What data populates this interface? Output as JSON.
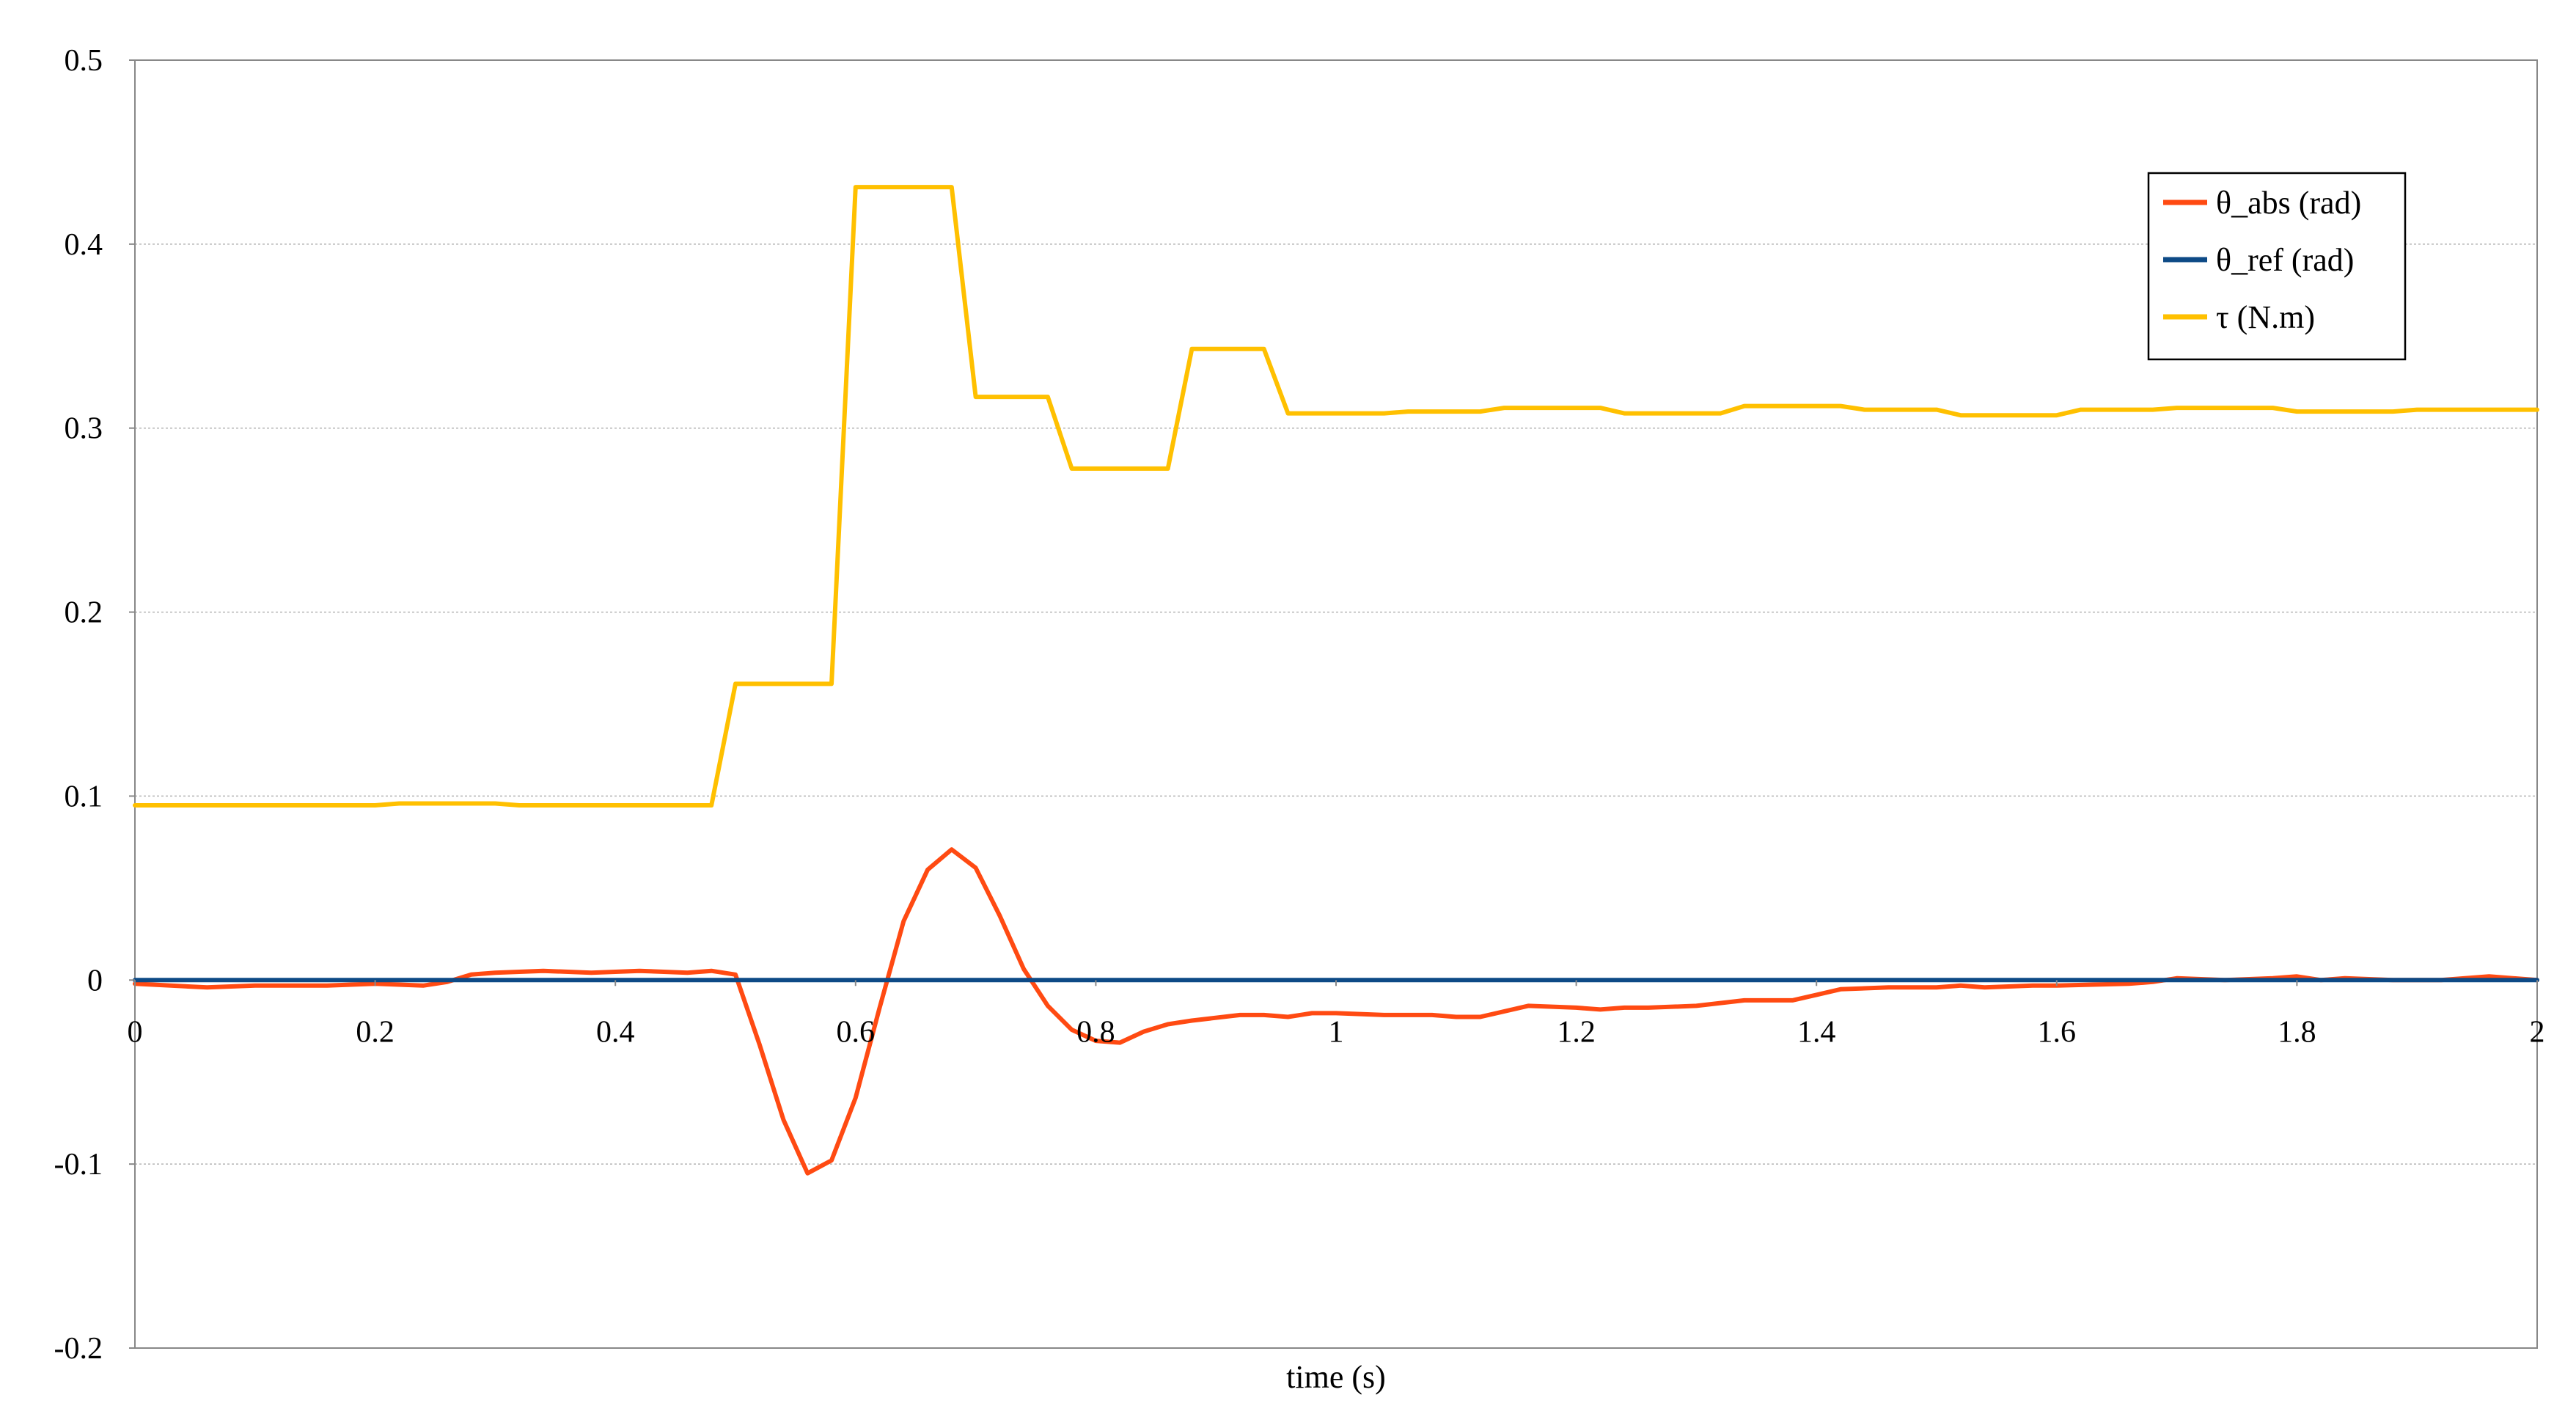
{
  "chart_data": {
    "type": "line",
    "title": "",
    "xlabel": "time (s)",
    "ylabel": "",
    "xlim": [
      0,
      2
    ],
    "ylim": [
      -0.2,
      0.5
    ],
    "xticks": [
      0,
      0.2,
      0.4,
      0.6,
      0.8,
      1,
      1.2,
      1.4,
      1.6,
      1.8,
      2
    ],
    "yticks": [
      -0.2,
      -0.1,
      0,
      0.1,
      0.2,
      0.3,
      0.4,
      0.5
    ],
    "xtick_labels": [
      "0",
      "0.2",
      "0.4",
      "0.6",
      "0.8",
      "1",
      "1.2",
      "1.4",
      "1.6",
      "1.8",
      "2"
    ],
    "ytick_labels": [
      "-0.2",
      "-0.1",
      "0",
      "0.1",
      "0.2",
      "0.3",
      "0.4",
      "0.5"
    ],
    "grid": "horizontal",
    "legend_position": "top-right",
    "series": [
      {
        "name": "θ_abs (rad)",
        "color": "#ff4a12",
        "points": [
          [
            0,
            -0.002
          ],
          [
            0.06,
            -0.004
          ],
          [
            0.1,
            -0.003
          ],
          [
            0.16,
            -0.003
          ],
          [
            0.2,
            -0.002
          ],
          [
            0.24,
            -0.003
          ],
          [
            0.26,
            -0.001
          ],
          [
            0.28,
            0.003
          ],
          [
            0.3,
            0.004
          ],
          [
            0.34,
            0.005
          ],
          [
            0.38,
            0.004
          ],
          [
            0.42,
            0.005
          ],
          [
            0.46,
            0.004
          ],
          [
            0.48,
            0.005
          ],
          [
            0.5,
            0.003
          ],
          [
            0.52,
            -0.035
          ],
          [
            0.54,
            -0.076
          ],
          [
            0.56,
            -0.105
          ],
          [
            0.58,
            -0.098
          ],
          [
            0.6,
            -0.064
          ],
          [
            0.62,
            -0.015
          ],
          [
            0.64,
            0.032
          ],
          [
            0.66,
            0.06
          ],
          [
            0.68,
            0.071
          ],
          [
            0.7,
            0.061
          ],
          [
            0.72,
            0.035
          ],
          [
            0.74,
            0.006
          ],
          [
            0.76,
            -0.014
          ],
          [
            0.78,
            -0.027
          ],
          [
            0.8,
            -0.033
          ],
          [
            0.82,
            -0.034
          ],
          [
            0.84,
            -0.028
          ],
          [
            0.86,
            -0.024
          ],
          [
            0.88,
            -0.022
          ],
          [
            0.92,
            -0.019
          ],
          [
            0.94,
            -0.019
          ],
          [
            0.96,
            -0.02
          ],
          [
            0.98,
            -0.018
          ],
          [
            1.0,
            -0.018
          ],
          [
            1.04,
            -0.019
          ],
          [
            1.08,
            -0.019
          ],
          [
            1.1,
            -0.02
          ],
          [
            1.12,
            -0.02
          ],
          [
            1.16,
            -0.014
          ],
          [
            1.2,
            -0.015
          ],
          [
            1.22,
            -0.016
          ],
          [
            1.24,
            -0.015
          ],
          [
            1.26,
            -0.015
          ],
          [
            1.3,
            -0.014
          ],
          [
            1.34,
            -0.011
          ],
          [
            1.38,
            -0.011
          ],
          [
            1.4,
            -0.008
          ],
          [
            1.42,
            -0.005
          ],
          [
            1.46,
            -0.004
          ],
          [
            1.5,
            -0.004
          ],
          [
            1.52,
            -0.003
          ],
          [
            1.54,
            -0.004
          ],
          [
            1.58,
            -0.003
          ],
          [
            1.6,
            -0.003
          ],
          [
            1.66,
            -0.002
          ],
          [
            1.68,
            -0.001
          ],
          [
            1.7,
            0.001
          ],
          [
            1.74,
            0.0
          ],
          [
            1.78,
            0.001
          ],
          [
            1.8,
            0.002
          ],
          [
            1.82,
            0.0
          ],
          [
            1.84,
            0.001
          ],
          [
            1.88,
            0.0
          ],
          [
            1.92,
            0.0
          ],
          [
            1.96,
            0.002
          ],
          [
            2.0,
            0.0
          ]
        ]
      },
      {
        "name": "θ_ref (rad)",
        "color": "#0d4a86",
        "points": [
          [
            0,
            0
          ],
          [
            2,
            0
          ]
        ]
      },
      {
        "name": "τ (N.m)",
        "color": "#ffc000",
        "points": [
          [
            0,
            0.095
          ],
          [
            0.2,
            0.095
          ],
          [
            0.22,
            0.096
          ],
          [
            0.3,
            0.096
          ],
          [
            0.32,
            0.095
          ],
          [
            0.48,
            0.095
          ],
          [
            0.5,
            0.161
          ],
          [
            0.58,
            0.161
          ],
          [
            0.6,
            0.431
          ],
          [
            0.68,
            0.431
          ],
          [
            0.7,
            0.317
          ],
          [
            0.76,
            0.317
          ],
          [
            0.78,
            0.278
          ],
          [
            0.86,
            0.278
          ],
          [
            0.88,
            0.343
          ],
          [
            0.94,
            0.343
          ],
          [
            0.96,
            0.308
          ],
          [
            1.04,
            0.308
          ],
          [
            1.06,
            0.309
          ],
          [
            1.12,
            0.309
          ],
          [
            1.14,
            0.311
          ],
          [
            1.22,
            0.311
          ],
          [
            1.24,
            0.308
          ],
          [
            1.32,
            0.308
          ],
          [
            1.34,
            0.312
          ],
          [
            1.42,
            0.312
          ],
          [
            1.44,
            0.31
          ],
          [
            1.5,
            0.31
          ],
          [
            1.52,
            0.307
          ],
          [
            1.6,
            0.307
          ],
          [
            1.62,
            0.31
          ],
          [
            1.68,
            0.31
          ],
          [
            1.7,
            0.311
          ],
          [
            1.78,
            0.311
          ],
          [
            1.8,
            0.309
          ],
          [
            1.88,
            0.309
          ],
          [
            1.9,
            0.31
          ],
          [
            2.0,
            0.31
          ]
        ]
      }
    ]
  }
}
